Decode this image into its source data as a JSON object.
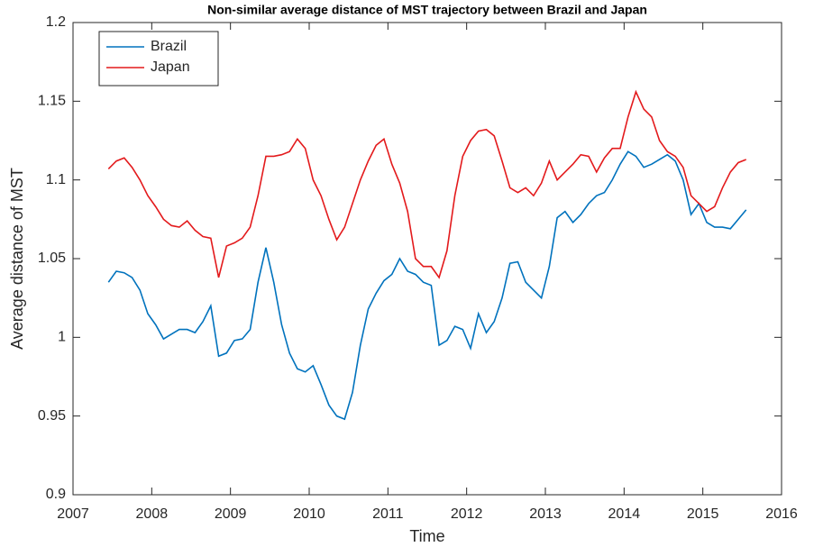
{
  "chart_data": {
    "type": "line",
    "title": "Non-similar average distance of MST trajectory between Brazil and Japan",
    "xlabel": "Time",
    "ylabel": "Average distance of MST",
    "x": [
      2007.45,
      2007.55,
      2007.65,
      2007.75,
      2007.85,
      2007.95,
      2008.05,
      2008.15,
      2008.25,
      2008.35,
      2008.45,
      2008.55,
      2008.65,
      2008.75,
      2008.85,
      2008.95,
      2009.05,
      2009.15,
      2009.25,
      2009.35,
      2009.45,
      2009.55,
      2009.65,
      2009.75,
      2009.85,
      2009.95,
      2010.05,
      2010.15,
      2010.25,
      2010.35,
      2010.45,
      2010.55,
      2010.65,
      2010.75,
      2010.85,
      2010.95,
      2011.05,
      2011.15,
      2011.25,
      2011.35,
      2011.45,
      2011.55,
      2011.65,
      2011.75,
      2011.85,
      2011.95,
      2012.05,
      2012.15,
      2012.25,
      2012.35,
      2012.45,
      2012.55,
      2012.65,
      2012.75,
      2012.85,
      2012.95,
      2013.05,
      2013.15,
      2013.25,
      2013.35,
      2013.45,
      2013.55,
      2013.65,
      2013.75,
      2013.85,
      2013.95,
      2014.05,
      2014.15,
      2014.25,
      2014.35,
      2014.45,
      2014.55,
      2014.65,
      2014.75,
      2014.85,
      2014.95,
      2015.05,
      2015.15,
      2015.25,
      2015.35,
      2015.45,
      2015.55
    ],
    "series": [
      {
        "name": "Brazil",
        "color": "#0072bd",
        "values": [
          1.035,
          1.042,
          1.041,
          1.038,
          1.03,
          1.015,
          1.008,
          0.999,
          1.002,
          1.005,
          1.005,
          1.003,
          1.01,
          1.02,
          0.988,
          0.99,
          0.998,
          0.999,
          1.005,
          1.035,
          1.057,
          1.035,
          1.008,
          0.99,
          0.98,
          0.978,
          0.982,
          0.97,
          0.957,
          0.95,
          0.948,
          0.965,
          0.995,
          1.018,
          1.028,
          1.036,
          1.04,
          1.05,
          1.042,
          1.04,
          1.035,
          1.033,
          0.995,
          0.998,
          1.007,
          1.005,
          0.993,
          1.015,
          1.003,
          1.01,
          1.025,
          1.047,
          1.048,
          1.035,
          1.03,
          1.025,
          1.045,
          1.076,
          1.08,
          1.073,
          1.078,
          1.085,
          1.09,
          1.092,
          1.1,
          1.11,
          1.118,
          1.115,
          1.108,
          1.11,
          1.113,
          1.116,
          1.112,
          1.1,
          1.078,
          1.085,
          1.073,
          1.07,
          1.07,
          1.069,
          1.075,
          1.081
        ]
      },
      {
        "name": "Japan",
        "color": "#e31a1c",
        "values": [
          1.107,
          1.112,
          1.114,
          1.108,
          1.1,
          1.09,
          1.083,
          1.075,
          1.071,
          1.07,
          1.074,
          1.068,
          1.064,
          1.063,
          1.038,
          1.058,
          1.06,
          1.063,
          1.07,
          1.09,
          1.115,
          1.115,
          1.116,
          1.118,
          1.126,
          1.12,
          1.1,
          1.09,
          1.075,
          1.062,
          1.07,
          1.085,
          1.1,
          1.112,
          1.122,
          1.126,
          1.11,
          1.098,
          1.08,
          1.05,
          1.045,
          1.045,
          1.038,
          1.055,
          1.09,
          1.115,
          1.125,
          1.131,
          1.132,
          1.128,
          1.112,
          1.095,
          1.092,
          1.095,
          1.09,
          1.098,
          1.112,
          1.1,
          1.105,
          1.11,
          1.116,
          1.115,
          1.105,
          1.114,
          1.12,
          1.12,
          1.14,
          1.156,
          1.145,
          1.14,
          1.125,
          1.118,
          1.115,
          1.108,
          1.09,
          1.085,
          1.08,
          1.083,
          1.095,
          1.105,
          1.111,
          1.113
        ]
      }
    ],
    "xlim": [
      2007,
      2016
    ],
    "xticks": [
      2007,
      2008,
      2009,
      2010,
      2011,
      2012,
      2013,
      2014,
      2015,
      2016
    ],
    "ylim": [
      0.9,
      1.2
    ],
    "yticks": [
      0.9,
      0.95,
      1,
      1.05,
      1.1,
      1.15,
      1.2
    ],
    "grid": false,
    "legend": "upper-left"
  }
}
